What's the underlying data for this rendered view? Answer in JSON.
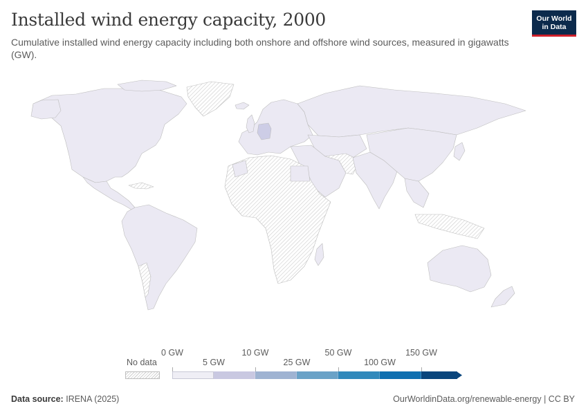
{
  "header": {
    "title": "Installed wind energy capacity, 2000",
    "subtitle": "Cumulative installed wind energy capacity including both onshore and offshore wind sources, measured in gigawatts (GW)."
  },
  "logo": {
    "line1": "Our World",
    "line2": "in Data",
    "bg": "#0c2a4c",
    "accent": "#cf1f2a"
  },
  "map": {
    "type": "choropleth",
    "year": 2000,
    "unit": "GW",
    "colors": {
      "low": "#ebe9f3",
      "germany": "#cdcde6",
      "no_data_hatch": "#cfcfcf",
      "border": "#bdbdbd"
    }
  },
  "legend": {
    "no_data_label": "No data",
    "ticks_top": [
      "0 GW",
      "10 GW",
      "50 GW",
      "150 GW"
    ],
    "ticks_bottom": [
      "5 GW",
      "25 GW",
      "100 GW"
    ],
    "bins": [
      {
        "range": "0–5 GW",
        "color": "#efeef5"
      },
      {
        "range": "5–10 GW",
        "color": "#c9c8e1"
      },
      {
        "range": "10–25 GW",
        "color": "#9fb3d2"
      },
      {
        "range": "25–50 GW",
        "color": "#6aa2c7"
      },
      {
        "range": "50–100 GW",
        "color": "#3189bb"
      },
      {
        "range": "100–150 GW",
        "color": "#0f6fb0"
      },
      {
        "range": "150+ GW",
        "color": "#09457c"
      }
    ]
  },
  "footer": {
    "source_label": "Data source:",
    "source_value": "IRENA (2025)",
    "url_license": "OurWorldinData.org/renewable-energy | CC BY"
  }
}
